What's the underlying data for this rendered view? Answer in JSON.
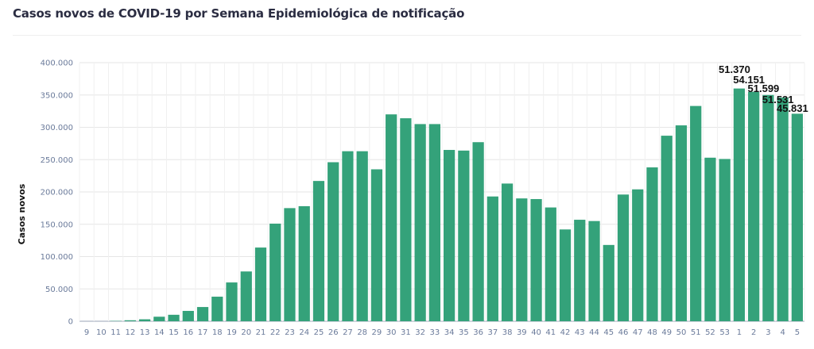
{
  "title": "Casos novos de COVID-19 por Semana Epidemiológica de notificação",
  "chart_data": {
    "type": "bar",
    "title": "Casos novos de COVID-19 por Semana Epidemiológica de notificação",
    "xlabel": "",
    "ylabel": "Casos novos",
    "ylim": [
      0,
      400000
    ],
    "yticks": [
      0,
      50000,
      100000,
      150000,
      200000,
      250000,
      300000,
      350000,
      400000
    ],
    "ytick_labels": [
      "0",
      "50.000",
      "100.000",
      "150.000",
      "200.000",
      "250.000",
      "300.000",
      "350.000",
      "400.000"
    ],
    "grid": true,
    "categories": [
      "9",
      "10",
      "11",
      "12",
      "13",
      "14",
      "15",
      "16",
      "17",
      "18",
      "19",
      "20",
      "21",
      "22",
      "23",
      "24",
      "25",
      "26",
      "27",
      "28",
      "29",
      "30",
      "31",
      "32",
      "33",
      "34",
      "35",
      "36",
      "37",
      "38",
      "39",
      "40",
      "41",
      "42",
      "43",
      "44",
      "45",
      "46",
      "47",
      "48",
      "49",
      "50",
      "51",
      "52",
      "53",
      "1",
      "2",
      "3",
      "4",
      "5"
    ],
    "values": [
      0,
      0,
      500,
      1500,
      3000,
      7000,
      10000,
      16000,
      22000,
      38000,
      60000,
      77000,
      114000,
      151000,
      175000,
      178000,
      217000,
      246000,
      263000,
      263000,
      235000,
      320000,
      314000,
      305000,
      305000,
      265000,
      264000,
      277000,
      193000,
      213000,
      190000,
      189000,
      176000,
      142000,
      157000,
      155000,
      118000,
      196000,
      204000,
      238000,
      287000,
      303000,
      333000,
      253000,
      251000,
      360000,
      355000,
      350000,
      346000,
      321000
    ],
    "color": "#34a27a",
    "data_labels": [
      {
        "category": "1",
        "text": "51.370"
      },
      {
        "category": "2",
        "text": "54.151"
      },
      {
        "category": "3",
        "text": "51.599"
      },
      {
        "category": "4",
        "text": "51.531"
      },
      {
        "category": "5",
        "text": "45.831"
      }
    ]
  }
}
